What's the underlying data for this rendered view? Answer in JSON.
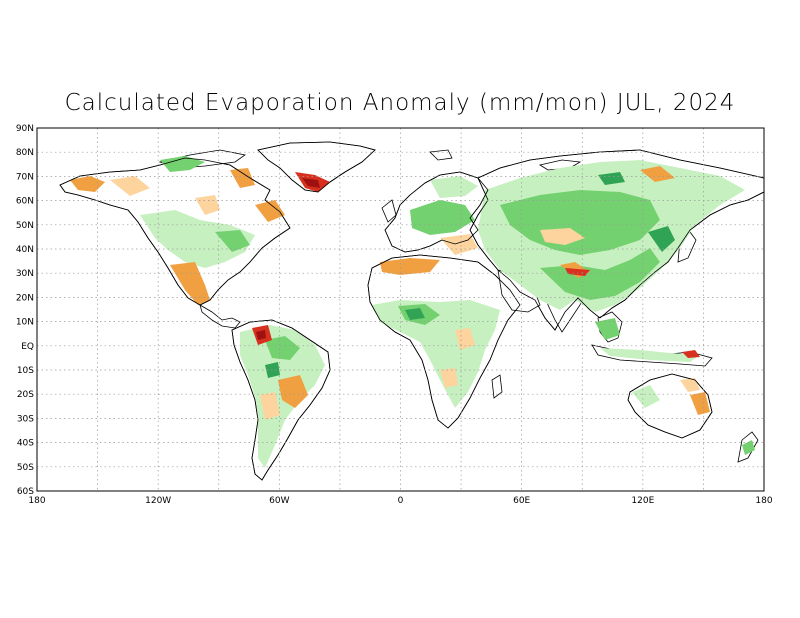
{
  "title": "Calculated Evaporation Anomaly (mm/mon) JUL, 2024",
  "lat_labels": [
    "90N",
    "80N",
    "70N",
    "60N",
    "50N",
    "40N",
    "30N",
    "20N",
    "10N",
    "EQ",
    "10S",
    "20S",
    "30S",
    "40S",
    "50S",
    "60S"
  ],
  "lon_labels": [
    "180",
    "120W",
    "60W",
    "0",
    "60E",
    "120E",
    "180"
  ],
  "grid": true,
  "colors": {
    "background": "#ffffff",
    "land": "#ffffff",
    "coast": "#000000",
    "grid": "#999999",
    "strong_positive": "#31a354",
    "positive": "#74d170",
    "weak_positive": "#c7f0c0",
    "weak_negative": "#fdd49e",
    "negative": "#f0a040",
    "strong_negative": "#d7301f",
    "extreme_negative": "#a01010"
  }
}
